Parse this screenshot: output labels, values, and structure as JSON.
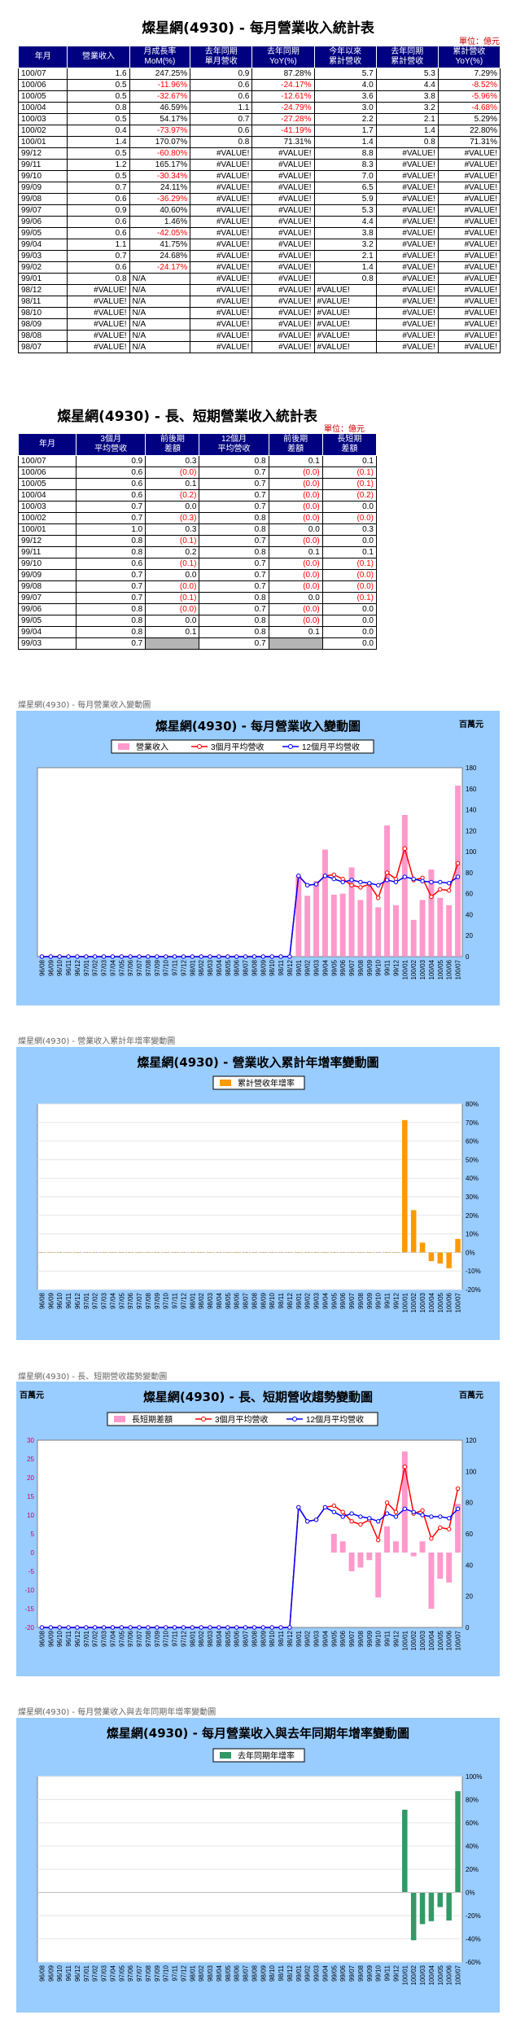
{
  "title1": "燦星網(4930) - 每月營業收入統計表",
  "unit": "單位：億元",
  "monthly_headers": [
    "年月",
    "營業收入",
    "月成長率\nMoM(%)",
    "去年同期\n單月營收",
    "去年同期\nYoY(%)",
    "今年以來\n累計營收",
    "去年同期\n累計營收",
    "累計營收\nYoY(%)"
  ],
  "monthly_rows": [
    [
      "100/07",
      "1.6",
      "247.25%",
      "0.9",
      "87.28%",
      "5.7",
      "5.3",
      "7.29%"
    ],
    [
      "100/06",
      "0.5",
      "-11.96%",
      "0.6",
      "-24.17%",
      "4.0",
      "4.4",
      "-8.52%"
    ],
    [
      "100/05",
      "0.5",
      "-32.67%",
      "0.6",
      "-12.61%",
      "3.6",
      "3.8",
      "-5.96%"
    ],
    [
      "100/04",
      "0.8",
      "46.59%",
      "1.1",
      "-24.79%",
      "3.0",
      "3.2",
      "-4.68%"
    ],
    [
      "100/03",
      "0.5",
      "54.17%",
      "0.7",
      "-27.28%",
      "2.2",
      "2.1",
      "5.29%"
    ],
    [
      "100/02",
      "0.4",
      "-73.97%",
      "0.6",
      "-41.19%",
      "1.7",
      "1.4",
      "22.80%"
    ],
    [
      "100/01",
      "1.4",
      "170.07%",
      "0.8",
      "71.31%",
      "1.4",
      "0.8",
      "71.31%"
    ],
    [
      "99/12",
      "0.5",
      "-60.80%",
      "#VALUE!",
      "#VALUE!",
      "8.8",
      "#VALUE!",
      "#VALUE!"
    ],
    [
      "99/11",
      "1.2",
      "165.17%",
      "#VALUE!",
      "#VALUE!",
      "8.3",
      "#VALUE!",
      "#VALUE!"
    ],
    [
      "99/10",
      "0.5",
      "-30.34%",
      "#VALUE!",
      "#VALUE!",
      "7.0",
      "#VALUE!",
      "#VALUE!"
    ],
    [
      "99/09",
      "0.7",
      "24.11%",
      "#VALUE!",
      "#VALUE!",
      "6.5",
      "#VALUE!",
      "#VALUE!"
    ],
    [
      "99/08",
      "0.6",
      "-36.29%",
      "#VALUE!",
      "#VALUE!",
      "5.9",
      "#VALUE!",
      "#VALUE!"
    ],
    [
      "99/07",
      "0.9",
      "40.60%",
      "#VALUE!",
      "#VALUE!",
      "5.3",
      "#VALUE!",
      "#VALUE!"
    ],
    [
      "99/06",
      "0.6",
      "1.46%",
      "#VALUE!",
      "#VALUE!",
      "4.4",
      "#VALUE!",
      "#VALUE!"
    ],
    [
      "99/05",
      "0.6",
      "-42.05%",
      "#VALUE!",
      "#VALUE!",
      "3.8",
      "#VALUE!",
      "#VALUE!"
    ],
    [
      "99/04",
      "1.1",
      "41.75%",
      "#VALUE!",
      "#VALUE!",
      "3.2",
      "#VALUE!",
      "#VALUE!"
    ],
    [
      "99/03",
      "0.7",
      "24.68%",
      "#VALUE!",
      "#VALUE!",
      "2.1",
      "#VALUE!",
      "#VALUE!"
    ],
    [
      "99/02",
      "0.6",
      "-24.17%",
      "#VALUE!",
      "#VALUE!",
      "1.4",
      "#VALUE!",
      "#VALUE!"
    ],
    [
      "99/01",
      "0.8",
      "N/A",
      "#VALUE!",
      "#VALUE!",
      "0.8",
      "#VALUE!",
      "#VALUE!"
    ],
    [
      "98/12",
      "#VALUE!",
      "N/A",
      "#VALUE!",
      "#VALUE!",
      "#VALUE!",
      "#VALUE!",
      "#VALUE!"
    ],
    [
      "98/11",
      "#VALUE!",
      "N/A",
      "#VALUE!",
      "#VALUE!",
      "#VALUE!",
      "#VALUE!",
      "#VALUE!"
    ],
    [
      "98/10",
      "#VALUE!",
      "N/A",
      "#VALUE!",
      "#VALUE!",
      "#VALUE!",
      "#VALUE!",
      "#VALUE!"
    ],
    [
      "98/09",
      "#VALUE!",
      "N/A",
      "#VALUE!",
      "#VALUE!",
      "#VALUE!",
      "#VALUE!",
      "#VALUE!"
    ],
    [
      "98/08",
      "#VALUE!",
      "N/A",
      "#VALUE!",
      "#VALUE!",
      "#VALUE!",
      "#VALUE!",
      "#VALUE!"
    ],
    [
      "98/07",
      "#VALUE!",
      "N/A",
      "#VALUE!",
      "#VALUE!",
      "#VALUE!",
      "#VALUE!",
      "#VALUE!"
    ]
  ],
  "title2": "燦星網(4930) - 長、短期營業收入統計表",
  "unit2": "單位：億元",
  "trend_headers": [
    "年月",
    "3個月\n平均營收",
    "前後期\n差額",
    "12個月\n平均營收",
    "前後期\n差額",
    "長短期\n差額"
  ],
  "trend_rows": [
    [
      "100/07",
      "0.9",
      "0.3",
      "0.8",
      "0.1",
      "0.1"
    ],
    [
      "100/06",
      "0.6",
      "(0.0)",
      "0.7",
      "(0.0)",
      "(0.1)"
    ],
    [
      "100/05",
      "0.6",
      "0.1",
      "0.7",
      "(0.0)",
      "(0.1)"
    ],
    [
      "100/04",
      "0.6",
      "(0.2)",
      "0.7",
      "(0.0)",
      "(0.2)"
    ],
    [
      "100/03",
      "0.7",
      "0.0",
      "0.7",
      "(0.0)",
      "0.0"
    ],
    [
      "100/02",
      "0.7",
      "(0.3)",
      "0.8",
      "(0.0)",
      "(0.0)"
    ],
    [
      "100/01",
      "1.0",
      "0.3",
      "0.8",
      "0.0",
      "0.3"
    ],
    [
      "99/12",
      "0.8",
      "(0.1)",
      "0.7",
      "(0.0)",
      "0.0"
    ],
    [
      "99/11",
      "0.8",
      "0.2",
      "0.8",
      "0.1",
      "0.1"
    ],
    [
      "99/10",
      "0.6",
      "(0.1)",
      "0.7",
      "(0.0)",
      "(0.1)"
    ],
    [
      "99/09",
      "0.7",
      "0.0",
      "0.7",
      "(0.0)",
      "(0.0)"
    ],
    [
      "99/08",
      "0.7",
      "(0.0)",
      "0.7",
      "(0.0)",
      "(0.0)"
    ],
    [
      "99/07",
      "0.7",
      "(0.1)",
      "0.8",
      "0.0",
      "(0.1)"
    ],
    [
      "99/06",
      "0.8",
      "(0.0)",
      "0.7",
      "(0.0)",
      "0.0"
    ],
    [
      "99/05",
      "0.8",
      "0.0",
      "0.8",
      "(0.0)",
      "0.0"
    ],
    [
      "99/04",
      "0.8",
      "0.1",
      "0.8",
      "0.1",
      "0.0"
    ],
    [
      "99/03",
      "0.7",
      "",
      "0.7",
      "",
      "0.0"
    ]
  ],
  "captions": {
    "c1": "燦星網(4930) - 每月營業收入變動圖",
    "c2": "燦星網(4930) -  營業收入累計年增率變動圖",
    "c3": "燦星網(4930) -  長、短期營收趨勢變動圖",
    "c4": "燦星網(4930) -  每月營業收入與去年同期年增率變動圖"
  },
  "unit_million": "百萬元",
  "colors": {
    "header": "#000080",
    "panel": "#99ccff",
    "pink": "#ff99cc",
    "red": "#ff0000",
    "blue": "#0000ff",
    "orange": "#ff9900",
    "green": "#339966"
  },
  "chart_data": [
    {
      "type": "bar",
      "title": "燦星網(4930) - 每月營業收入變動圖",
      "legend": [
        "營業收入",
        "3個月平均營收",
        "12個月平均營收"
      ],
      "categories": [
        "96/08",
        "96/09",
        "96/10",
        "96/11",
        "96/12",
        "97/01",
        "97/02",
        "97/03",
        "97/04",
        "97/05",
        "97/06",
        "97/07",
        "97/08",
        "97/09",
        "97/10",
        "97/11",
        "97/12",
        "98/01",
        "98/02",
        "98/03",
        "98/04",
        "98/05",
        "98/06",
        "98/07",
        "98/08",
        "98/09",
        "98/10",
        "98/11",
        "98/12",
        "99/01",
        "99/02",
        "99/03",
        "99/04",
        "99/05",
        "99/06",
        "99/07",
        "99/08",
        "99/09",
        "99/10",
        "99/11",
        "99/12",
        "100/01",
        "100/02",
        "100/03",
        "100/04",
        "100/05",
        "100/06",
        "100/07"
      ],
      "series": [
        {
          "name": "營業收入",
          "values": [
            0,
            0,
            0,
            0,
            0,
            0,
            0,
            0,
            0,
            0,
            0,
            0,
            0,
            0,
            0,
            0,
            0,
            0,
            0,
            0,
            0,
            0,
            0,
            0,
            0,
            0,
            0,
            0,
            0,
            77,
            58,
            72,
            102,
            59,
            60,
            85,
            54,
            67,
            47,
            125,
            49,
            135,
            35,
            54,
            83,
            56,
            49,
            163
          ]
        },
        {
          "name": "3個月平均營收",
          "values": [
            0,
            0,
            0,
            0,
            0,
            0,
            0,
            0,
            0,
            0,
            0,
            0,
            0,
            0,
            0,
            0,
            0,
            0,
            0,
            0,
            0,
            0,
            0,
            0,
            0,
            0,
            0,
            0,
            0,
            77,
            68,
            69,
            77,
            78,
            74,
            68,
            66,
            69,
            56,
            80,
            74,
            103,
            73,
            75,
            57,
            64,
            63,
            89
          ]
        },
        {
          "name": "12個月平均營收",
          "values": [
            0,
            0,
            0,
            0,
            0,
            0,
            0,
            0,
            0,
            0,
            0,
            0,
            0,
            0,
            0,
            0,
            0,
            0,
            0,
            0,
            0,
            0,
            0,
            0,
            0,
            0,
            0,
            0,
            0,
            77,
            68,
            69,
            77,
            74,
            71,
            73,
            71,
            70,
            68,
            73,
            71,
            76,
            74,
            72,
            71,
            71,
            70,
            76
          ]
        }
      ],
      "ylim": [
        0,
        180
      ],
      "yunit": "百萬元"
    },
    {
      "type": "bar",
      "title": "燦星網(4930) -  營業收入累計年增率變動圖",
      "legend": [
        "累計營收年增率"
      ],
      "categories": [
        "96/08",
        "96/09",
        "96/10",
        "96/11",
        "96/12",
        "97/01",
        "97/02",
        "97/03",
        "97/04",
        "97/05",
        "97/06",
        "97/07",
        "97/08",
        "97/09",
        "97/10",
        "97/11",
        "97/12",
        "98/01",
        "98/02",
        "98/03",
        "98/04",
        "98/05",
        "98/06",
        "98/07",
        "98/08",
        "98/09",
        "98/10",
        "98/11",
        "98/12",
        "99/01",
        "99/02",
        "99/03",
        "99/04",
        "99/05",
        "99/06",
        "99/07",
        "99/08",
        "99/09",
        "99/10",
        "99/11",
        "99/12",
        "100/01",
        "100/02",
        "100/03",
        "100/04",
        "100/05",
        "100/06",
        "100/07"
      ],
      "series": [
        {
          "name": "累計營收年增率",
          "values": [
            0,
            0,
            0,
            0,
            0,
            0,
            0,
            0,
            0,
            0,
            0,
            0,
            0,
            0,
            0,
            0,
            0,
            0,
            0,
            0,
            0,
            0,
            0,
            0,
            0,
            0,
            0,
            0,
            0,
            0,
            0,
            0,
            0,
            0,
            0,
            0,
            0,
            0,
            0,
            0,
            0,
            71.31,
            22.8,
            5.29,
            -4.68,
            -5.96,
            -8.52,
            7.29
          ]
        }
      ],
      "ylim": [
        -20,
        80
      ],
      "yformat": "percent"
    },
    {
      "type": "bar",
      "title": "燦星網(4930) -  長、短期營收趨勢變動圖",
      "legend": [
        "長短期差額",
        "3個月平均營收",
        "12個月平均營收"
      ],
      "categories": [
        "96/08",
        "96/09",
        "96/10",
        "96/11",
        "96/12",
        "97/01",
        "97/02",
        "97/03",
        "97/04",
        "97/05",
        "97/06",
        "97/07",
        "97/08",
        "97/09",
        "97/10",
        "97/11",
        "97/12",
        "98/01",
        "98/02",
        "98/03",
        "98/04",
        "98/05",
        "98/06",
        "98/07",
        "98/08",
        "98/09",
        "98/10",
        "98/11",
        "98/12",
        "99/01",
        "99/02",
        "99/03",
        "99/04",
        "99/05",
        "99/06",
        "99/07",
        "99/08",
        "99/09",
        "99/10",
        "99/11",
        "99/12",
        "100/01",
        "100/02",
        "100/03",
        "100/04",
        "100/05",
        "100/06",
        "100/07"
      ],
      "series": [
        {
          "name": "長短期差額",
          "values": [
            0,
            0,
            0,
            0,
            0,
            0,
            0,
            0,
            0,
            0,
            0,
            0,
            0,
            0,
            0,
            0,
            0,
            0,
            0,
            0,
            0,
            0,
            0,
            0,
            0,
            0,
            0,
            0,
            0,
            0,
            0,
            0,
            0,
            5,
            3,
            -5,
            -4,
            -2,
            -12,
            7,
            3,
            27,
            -1,
            3,
            -15,
            -7,
            -8,
            13
          ]
        },
        {
          "name": "3個月平均營收",
          "values": [
            0,
            0,
            0,
            0,
            0,
            0,
            0,
            0,
            0,
            0,
            0,
            0,
            0,
            0,
            0,
            0,
            0,
            0,
            0,
            0,
            0,
            0,
            0,
            0,
            0,
            0,
            0,
            0,
            0,
            77,
            68,
            69,
            77,
            78,
            74,
            68,
            66,
            69,
            56,
            80,
            74,
            103,
            73,
            75,
            57,
            64,
            63,
            89
          ]
        },
        {
          "name": "12個月平均營收",
          "values": [
            0,
            0,
            0,
            0,
            0,
            0,
            0,
            0,
            0,
            0,
            0,
            0,
            0,
            0,
            0,
            0,
            0,
            0,
            0,
            0,
            0,
            0,
            0,
            0,
            0,
            0,
            0,
            0,
            0,
            77,
            68,
            69,
            77,
            74,
            71,
            73,
            71,
            70,
            68,
            73,
            71,
            76,
            74,
            72,
            71,
            71,
            70,
            76
          ]
        }
      ],
      "ylim_left": [
        -20,
        30
      ],
      "ylim_right": [
        0,
        120
      ],
      "yunit": "百萬元"
    },
    {
      "type": "bar",
      "title": "燦星網(4930) -  每月營業收入與去年同期年增率變動圖",
      "legend": [
        "去年同期年增率"
      ],
      "categories": [
        "96/08",
        "96/09",
        "96/10",
        "96/11",
        "96/12",
        "97/01",
        "97/02",
        "97/03",
        "97/04",
        "97/05",
        "97/06",
        "97/07",
        "97/08",
        "97/09",
        "97/10",
        "97/11",
        "97/12",
        "98/01",
        "98/02",
        "98/03",
        "98/04",
        "98/05",
        "98/06",
        "98/07",
        "98/08",
        "98/09",
        "98/10",
        "98/11",
        "98/12",
        "99/01",
        "99/02",
        "99/03",
        "99/04",
        "99/05",
        "99/06",
        "99/07",
        "99/08",
        "99/09",
        "99/10",
        "99/11",
        "99/12",
        "100/01",
        "100/02",
        "100/03",
        "100/04",
        "100/05",
        "100/06",
        "100/07"
      ],
      "series": [
        {
          "name": "去年同期年增率",
          "values": [
            0,
            0,
            0,
            0,
            0,
            0,
            0,
            0,
            0,
            0,
            0,
            0,
            0,
            0,
            0,
            0,
            0,
            0,
            0,
            0,
            0,
            0,
            0,
            0,
            0,
            0,
            0,
            0,
            0,
            0,
            0,
            0,
            0,
            0,
            0,
            0,
            0,
            0,
            0,
            0,
            0,
            71.31,
            -41.19,
            -27.28,
            -24.79,
            -12.61,
            -24.17,
            87.28
          ]
        }
      ],
      "ylim": [
        -60,
        100
      ],
      "yformat": "percent"
    }
  ]
}
